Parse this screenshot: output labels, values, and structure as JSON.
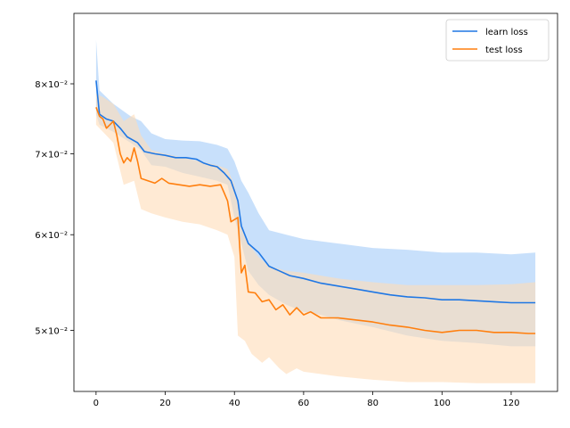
{
  "chart_data": {
    "type": "line",
    "title": "",
    "xlabel": "",
    "ylabel": "",
    "yscale": "log",
    "grid": false,
    "legend_placement": "top-right",
    "xlim": [
      -6.4,
      133.4
    ],
    "ylim": [
      0.0445,
      0.0915
    ],
    "x_ticks": [
      0,
      20,
      40,
      60,
      80,
      100,
      120
    ],
    "x_tick_labels": [
      "0",
      "20",
      "40",
      "60",
      "80",
      "100",
      "120"
    ],
    "y_ticks": [
      0.05,
      0.06,
      0.07,
      0.08
    ],
    "y_tick_labels": [
      "5×10⁻²",
      "6×10⁻²",
      "7×10⁻²",
      "8×10⁻²"
    ],
    "series": [
      {
        "name": "learn loss",
        "color": "#1f77e4",
        "band_color": "#b5d6fa",
        "points": [
          [
            0,
            0.0805
          ],
          [
            1,
            0.0755
          ],
          [
            3,
            0.0748
          ],
          [
            5,
            0.0745
          ],
          [
            7,
            0.0735
          ],
          [
            9,
            0.0723
          ],
          [
            12,
            0.0715
          ],
          [
            14,
            0.0703
          ],
          [
            17,
            0.07
          ],
          [
            20,
            0.0698
          ],
          [
            23,
            0.0695
          ],
          [
            26,
            0.0695
          ],
          [
            29,
            0.0693
          ],
          [
            31,
            0.0688
          ],
          [
            33,
            0.0685
          ],
          [
            35,
            0.0683
          ],
          [
            37,
            0.0675
          ],
          [
            39,
            0.0665
          ],
          [
            41,
            0.064
          ],
          [
            42,
            0.061
          ],
          [
            44,
            0.059
          ],
          [
            47,
            0.058
          ],
          [
            50,
            0.0565
          ],
          [
            53,
            0.056
          ],
          [
            56,
            0.0555
          ],
          [
            60,
            0.0552
          ],
          [
            65,
            0.0547
          ],
          [
            70,
            0.0544
          ],
          [
            75,
            0.0541
          ],
          [
            80,
            0.0538
          ],
          [
            85,
            0.0535
          ],
          [
            90,
            0.0533
          ],
          [
            95,
            0.0532
          ],
          [
            100,
            0.053
          ],
          [
            105,
            0.053
          ],
          [
            110,
            0.0529
          ],
          [
            115,
            0.0528
          ],
          [
            120,
            0.0527
          ],
          [
            127,
            0.0527
          ]
        ],
        "upper": [
          [
            0,
            0.087
          ],
          [
            1,
            0.079
          ],
          [
            5,
            0.077
          ],
          [
            10,
            0.0752
          ],
          [
            13,
            0.0745
          ],
          [
            16,
            0.0728
          ],
          [
            20,
            0.072
          ],
          [
            25,
            0.0718
          ],
          [
            30,
            0.0717
          ],
          [
            35,
            0.0712
          ],
          [
            38,
            0.0707
          ],
          [
            40,
            0.069
          ],
          [
            42,
            0.0665
          ],
          [
            44,
            0.065
          ],
          [
            47,
            0.0625
          ],
          [
            50,
            0.0605
          ],
          [
            55,
            0.06
          ],
          [
            60,
            0.0595
          ],
          [
            70,
            0.059
          ],
          [
            80,
            0.0585
          ],
          [
            90,
            0.0583
          ],
          [
            100,
            0.058
          ],
          [
            110,
            0.058
          ],
          [
            120,
            0.0578
          ],
          [
            127,
            0.058
          ]
        ],
        "lower": [
          [
            0,
            0.0755
          ],
          [
            1,
            0.074
          ],
          [
            5,
            0.073
          ],
          [
            10,
            0.0715
          ],
          [
            13,
            0.0705
          ],
          [
            16,
            0.0685
          ],
          [
            20,
            0.0683
          ],
          [
            25,
            0.0675
          ],
          [
            30,
            0.067
          ],
          [
            35,
            0.0665
          ],
          [
            38,
            0.066
          ],
          [
            40,
            0.062
          ],
          [
            42,
            0.059
          ],
          [
            44,
            0.056
          ],
          [
            47,
            0.0545
          ],
          [
            50,
            0.0535
          ],
          [
            55,
            0.0525
          ],
          [
            60,
            0.0518
          ],
          [
            65,
            0.0515
          ],
          [
            70,
            0.051
          ],
          [
            80,
            0.0503
          ],
          [
            90,
            0.0495
          ],
          [
            100,
            0.049
          ],
          [
            110,
            0.0488
          ],
          [
            120,
            0.0485
          ],
          [
            127,
            0.0485
          ]
        ]
      },
      {
        "name": "test loss",
        "color": "#ff7f0e",
        "band_color": "#ffdcb8",
        "points": [
          [
            0,
            0.0765
          ],
          [
            1,
            0.0752
          ],
          [
            2,
            0.0748
          ],
          [
            3,
            0.0735
          ],
          [
            5,
            0.0745
          ],
          [
            6,
            0.0725
          ],
          [
            7,
            0.07
          ],
          [
            8,
            0.0688
          ],
          [
            9,
            0.0695
          ],
          [
            10,
            0.069
          ],
          [
            11,
            0.0708
          ],
          [
            12,
            0.069
          ],
          [
            13,
            0.0668
          ],
          [
            15,
            0.0665
          ],
          [
            17,
            0.0662
          ],
          [
            19,
            0.0668
          ],
          [
            21,
            0.0662
          ],
          [
            24,
            0.066
          ],
          [
            27,
            0.0658
          ],
          [
            30,
            0.066
          ],
          [
            33,
            0.0658
          ],
          [
            36,
            0.066
          ],
          [
            37,
            0.065
          ],
          [
            38,
            0.064
          ],
          [
            39,
            0.0615
          ],
          [
            41,
            0.062
          ],
          [
            42,
            0.0558
          ],
          [
            43,
            0.0566
          ],
          [
            44,
            0.0538
          ],
          [
            46,
            0.0537
          ],
          [
            48,
            0.0528
          ],
          [
            50,
            0.053
          ],
          [
            52,
            0.052
          ],
          [
            54,
            0.0525
          ],
          [
            56,
            0.0515
          ],
          [
            58,
            0.0522
          ],
          [
            60,
            0.0515
          ],
          [
            62,
            0.0518
          ],
          [
            65,
            0.0512
          ],
          [
            70,
            0.0512
          ],
          [
            75,
            0.051
          ],
          [
            80,
            0.0508
          ],
          [
            85,
            0.0505
          ],
          [
            90,
            0.0503
          ],
          [
            95,
            0.05
          ],
          [
            100,
            0.0498
          ],
          [
            105,
            0.05
          ],
          [
            110,
            0.05
          ],
          [
            115,
            0.0498
          ],
          [
            120,
            0.0498
          ],
          [
            125,
            0.0497
          ],
          [
            127,
            0.0497
          ]
        ],
        "upper": [
          [
            0,
            0.0785
          ],
          [
            2,
            0.078
          ],
          [
            5,
            0.077
          ],
          [
            8,
            0.0745
          ],
          [
            11,
            0.0755
          ],
          [
            13,
            0.0725
          ],
          [
            16,
            0.0705
          ],
          [
            20,
            0.07
          ],
          [
            25,
            0.0695
          ],
          [
            30,
            0.069
          ],
          [
            35,
            0.0685
          ],
          [
            38,
            0.068
          ],
          [
            40,
            0.066
          ],
          [
            42,
            0.061
          ],
          [
            44,
            0.059
          ],
          [
            47,
            0.0575
          ],
          [
            50,
            0.0565
          ],
          [
            55,
            0.056
          ],
          [
            60,
            0.0558
          ],
          [
            65,
            0.0555
          ],
          [
            70,
            0.0552
          ],
          [
            80,
            0.0548
          ],
          [
            90,
            0.0545
          ],
          [
            100,
            0.0545
          ],
          [
            110,
            0.0545
          ],
          [
            120,
            0.0546
          ],
          [
            127,
            0.0548
          ]
        ],
        "lower": [
          [
            0,
            0.074
          ],
          [
            2,
            0.073
          ],
          [
            5,
            0.0715
          ],
          [
            8,
            0.066
          ],
          [
            11,
            0.0665
          ],
          [
            13,
            0.063
          ],
          [
            16,
            0.0625
          ],
          [
            20,
            0.062
          ],
          [
            25,
            0.0615
          ],
          [
            30,
            0.0612
          ],
          [
            35,
            0.0605
          ],
          [
            38,
            0.06
          ],
          [
            40,
            0.0575
          ],
          [
            41,
            0.0495
          ],
          [
            43,
            0.049
          ],
          [
            45,
            0.0478
          ],
          [
            48,
            0.047
          ],
          [
            50,
            0.0475
          ],
          [
            53,
            0.0465
          ],
          [
            55,
            0.046
          ],
          [
            58,
            0.0465
          ],
          [
            60,
            0.0462
          ],
          [
            65,
            0.046
          ],
          [
            70,
            0.0458
          ],
          [
            80,
            0.0455
          ],
          [
            90,
            0.0453
          ],
          [
            100,
            0.0453
          ],
          [
            110,
            0.0452
          ],
          [
            120,
            0.0452
          ],
          [
            127,
            0.0452
          ]
        ]
      }
    ]
  }
}
